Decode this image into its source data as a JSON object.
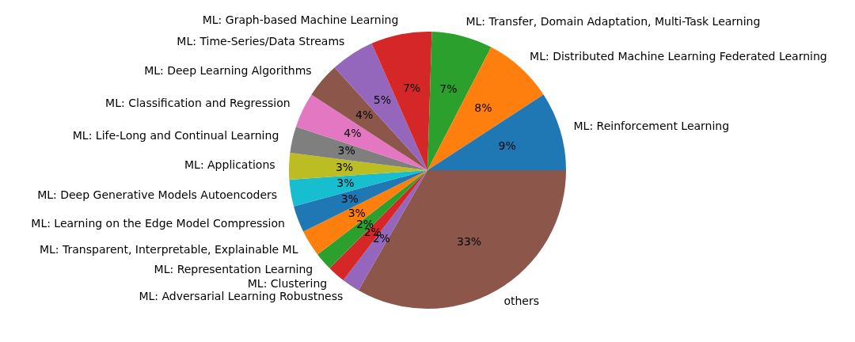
{
  "chart_data": {
    "type": "pie",
    "categories": [
      "ML: Reinforcement Learning",
      "ML: Distributed Machine Learning Federated Learning",
      "ML: Transfer, Domain Adaptation, Multi-Task Learning",
      "ML: Graph-based Machine Learning",
      "ML: Time-Series/Data Streams",
      "ML: Deep Learning Algorithms",
      "ML: Classification and Regression",
      "ML: Life-Long and Continual Learning",
      "ML: Applications",
      "ML: Deep Generative Models Autoencoders",
      "ML: Learning on the Edge Model Compression",
      "ML: Transparent, Interpretable, Explainable ML",
      "ML: Representation Learning",
      "ML: Clustering",
      "ML: Adversarial Learning Robustness",
      "others"
    ],
    "values": [
      9.2,
      8.2,
      7.1,
      7.1,
      5.1,
      4.1,
      4.1,
      3.1,
      3.1,
      3.1,
      3.1,
      3.1,
      2.1,
      2.1,
      2.1,
      33.3
    ],
    "value_labels": [
      "9%",
      "8%",
      "7%",
      "7%",
      "5%",
      "4%",
      "4%",
      "3%",
      "3%",
      "3%",
      "3%",
      "3%",
      "2%",
      "2%",
      "2%",
      "33%"
    ],
    "colors": [
      "#1f77b4",
      "#ff7f0e",
      "#2ca02c",
      "#d62728",
      "#9467bd",
      "#8c564b",
      "#e377c2",
      "#7f7f7f",
      "#bcbd22",
      "#17becf",
      "#1f77b4",
      "#ff7f0e",
      "#2ca02c",
      "#d62728",
      "#9467bd",
      "#8c564b"
    ],
    "legend": false
  }
}
